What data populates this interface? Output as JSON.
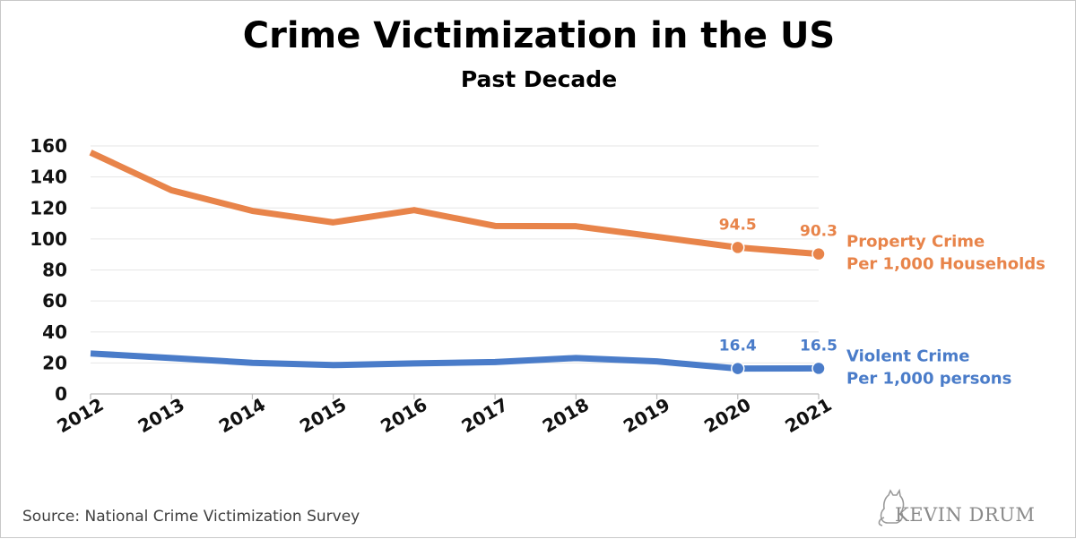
{
  "title": "Crime Victimization in the US",
  "subtitle": "Past Decade",
  "source": "Source: National Crime Victimization Survey",
  "watermark": "KEVIN DRUM",
  "colors": {
    "property": "#e8844a",
    "violent": "#4a7cc9",
    "grid": "#e6e6e6"
  },
  "chart_data": {
    "type": "line",
    "title": "Crime Victimization in the US",
    "subtitle": "Past Decade",
    "x": [
      "2012",
      "2013",
      "2014",
      "2015",
      "2016",
      "2017",
      "2018",
      "2019",
      "2020",
      "2021"
    ],
    "ylim": [
      0,
      160
    ],
    "yticks": [
      0,
      20,
      40,
      60,
      80,
      100,
      120,
      140,
      160
    ],
    "grid": true,
    "series": [
      {
        "key": "property",
        "name_lines": [
          "Property Crime",
          "Per 1,000 Households"
        ],
        "values": [
          155.8,
          131.4,
          118.1,
          110.7,
          118.6,
          108.4,
          108.2,
          101.4,
          94.5,
          90.3
        ],
        "labels": [
          null,
          null,
          null,
          null,
          null,
          null,
          null,
          null,
          "94.5",
          "90.3"
        ]
      },
      {
        "key": "violent",
        "name_lines": [
          "Violent Crime",
          "Per 1,000 persons"
        ],
        "values": [
          26.1,
          23.2,
          20.1,
          18.6,
          19.7,
          20.6,
          23.2,
          21.0,
          16.4,
          16.5
        ],
        "labels": [
          null,
          null,
          null,
          null,
          null,
          null,
          null,
          null,
          "16.4",
          "16.5"
        ]
      }
    ]
  }
}
